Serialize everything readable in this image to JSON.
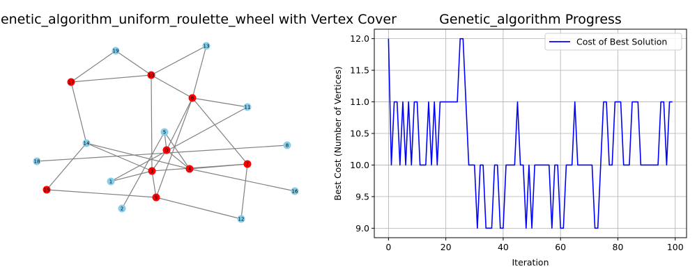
{
  "graph_panel": {
    "title": "Graph_genetic_algorithm_uniform_roulette_wheel with Vertex Cover",
    "edge_color": "#808080",
    "cover_color": "#ff0000",
    "other_color": "#87ceeb",
    "nodes": [
      {
        "id": "0",
        "in_cover": true
      },
      {
        "id": "1",
        "in_cover": false
      },
      {
        "id": "2",
        "in_cover": false
      },
      {
        "id": "3",
        "in_cover": true
      },
      {
        "id": "4",
        "in_cover": true
      },
      {
        "id": "5",
        "in_cover": false
      },
      {
        "id": "6",
        "in_cover": true
      },
      {
        "id": "7",
        "in_cover": true
      },
      {
        "id": "8",
        "in_cover": false
      },
      {
        "id": "9",
        "in_cover": true
      },
      {
        "id": "10",
        "in_cover": true
      },
      {
        "id": "11",
        "in_cover": false
      },
      {
        "id": "12",
        "in_cover": false
      },
      {
        "id": "13",
        "in_cover": false
      },
      {
        "id": "14",
        "in_cover": false
      },
      {
        "id": "15",
        "in_cover": true
      },
      {
        "id": "16",
        "in_cover": false
      },
      {
        "id": "17",
        "in_cover": true
      },
      {
        "id": "18",
        "in_cover": false
      },
      {
        "id": "19",
        "in_cover": false
      }
    ],
    "edges": [
      [
        "19",
        "17"
      ],
      [
        "19",
        "10"
      ],
      [
        "17",
        "10"
      ],
      [
        "17",
        "14"
      ],
      [
        "10",
        "6"
      ],
      [
        "10",
        "13"
      ],
      [
        "10",
        "3"
      ],
      [
        "13",
        "6"
      ],
      [
        "6",
        "11"
      ],
      [
        "6",
        "7"
      ],
      [
        "6",
        "9"
      ],
      [
        "6",
        "0"
      ],
      [
        "11",
        "1"
      ],
      [
        "5",
        "0"
      ],
      [
        "5",
        "4"
      ],
      [
        "5",
        "2"
      ],
      [
        "14",
        "15"
      ],
      [
        "14",
        "4"
      ],
      [
        "14",
        "3"
      ],
      [
        "18",
        "8"
      ],
      [
        "0",
        "4"
      ],
      [
        "0",
        "3"
      ],
      [
        "3",
        "1"
      ],
      [
        "3",
        "7"
      ],
      [
        "3",
        "9"
      ],
      [
        "4",
        "7"
      ],
      [
        "4",
        "16"
      ],
      [
        "7",
        "12"
      ],
      [
        "15",
        "9"
      ],
      [
        "9",
        "12"
      ]
    ]
  },
  "chart_data": {
    "type": "line",
    "title": "Genetic_algorithm Progress",
    "xlabel": "Iteration",
    "ylabel": "Best Cost (Number of Vertices)",
    "xlim": [
      -4.95,
      103.95
    ],
    "ylim": [
      8.85,
      12.15
    ],
    "xticks": [
      0,
      20,
      40,
      60,
      80,
      100
    ],
    "yticks": [
      9.0,
      9.5,
      10.0,
      10.5,
      11.0,
      11.5,
      12.0
    ],
    "ytick_labels": [
      "9.0",
      "9.5",
      "10.0",
      "10.5",
      "11.0",
      "11.5",
      "12.0"
    ],
    "grid": true,
    "legend_position": "upper-right",
    "series": [
      {
        "name": "Cost of Best Solution",
        "color": "#0000ff",
        "values": [
          12,
          10,
          11,
          11,
          10,
          11,
          10,
          11,
          10,
          11,
          11,
          10,
          10,
          10,
          11,
          10,
          11,
          10,
          11,
          11,
          11,
          11,
          11,
          11,
          11,
          12,
          12,
          11,
          10,
          10,
          10,
          9,
          10,
          10,
          9,
          9,
          9,
          10,
          10,
          9,
          9,
          10,
          10,
          10,
          10,
          11,
          10,
          10,
          9,
          10,
          9,
          10,
          10,
          10,
          10,
          10,
          10,
          9,
          10,
          10,
          9,
          9,
          10,
          10,
          10,
          11,
          10,
          10,
          10,
          10,
          10,
          10,
          9,
          9,
          10,
          11,
          11,
          10,
          10,
          11,
          11,
          11,
          10,
          10,
          10,
          11,
          11,
          11,
          10,
          10,
          10,
          10,
          10,
          10,
          10,
          11,
          11,
          10,
          11,
          11
        ]
      }
    ]
  }
}
